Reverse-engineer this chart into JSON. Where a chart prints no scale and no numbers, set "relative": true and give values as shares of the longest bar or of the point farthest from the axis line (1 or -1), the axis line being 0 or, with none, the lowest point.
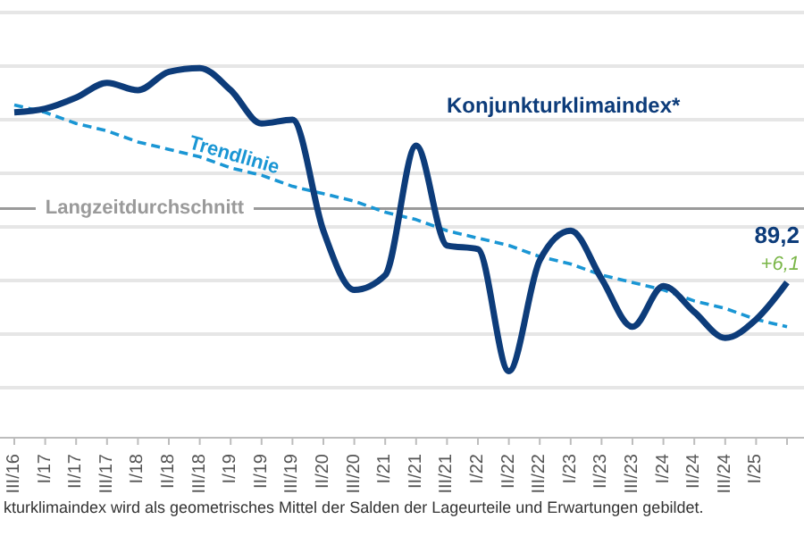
{
  "chart_data": {
    "type": "line",
    "relative": true,
    "categories": [
      "III/16",
      "I/17",
      "II/17",
      "III/17",
      "I/18",
      "II/18",
      "III/18",
      "I/19",
      "II/19",
      "III/19",
      "II/20",
      "III/20",
      "I/21",
      "II/21",
      "III/21",
      "I/22",
      "II/22",
      "III/22",
      "I/23",
      "II/23",
      "III/23",
      "I/24",
      "II/24",
      "III/24",
      "I/25",
      null
    ],
    "series": [
      {
        "name": "Konjunkturklimaindex*",
        "color": "#0d3c7a",
        "values": [
          0.88,
          0.89,
          0.92,
          0.96,
          0.94,
          0.99,
          1,
          0.94,
          0.85,
          0.86,
          0.56,
          0.4,
          0.44,
          0.79,
          0.52,
          0.51,
          0.18,
          0.48,
          0.56,
          0.43,
          0.3,
          0.41,
          0.34,
          0.27,
          0.32,
          0.42
        ]
      },
      {
        "name": "Trendlinie",
        "color": "#1a96d4",
        "line_style": "dashed",
        "values": [
          0.9,
          0.88,
          0.85,
          0.83,
          0.8,
          0.78,
          0.76,
          0.73,
          0.71,
          0.68,
          0.66,
          0.64,
          0.61,
          0.59,
          0.56,
          0.54,
          0.52,
          0.49,
          0.47,
          0.44,
          0.42,
          0.4,
          0.37,
          0.35,
          0.32,
          0.3
        ]
      }
    ],
    "ref_lines": [
      {
        "axis": "y",
        "value": 0.62,
        "label": "Langzeitdurchschnitt",
        "color": "#9a9a9a"
      }
    ],
    "annotations": [
      "89,2",
      "+6,1",
      "kturklimaindex wird als geometrisches Mittel der Salden der Lageurteile und Erwartungen gebildet."
    ],
    "grid": "y",
    "marker": "none"
  }
}
